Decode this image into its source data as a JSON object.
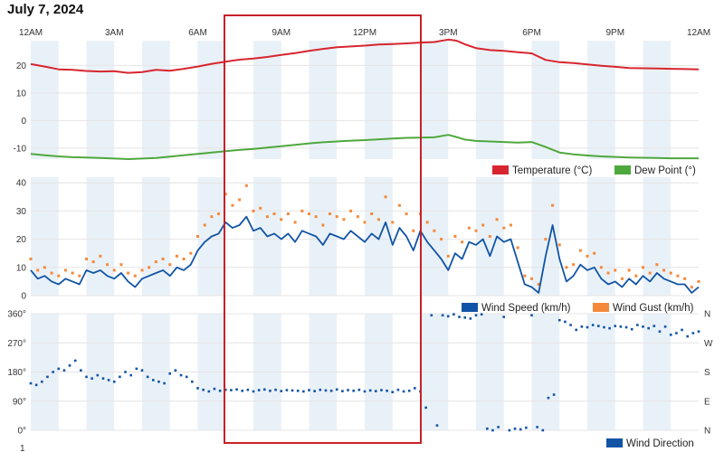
{
  "page": {
    "title": "July 7, 2024"
  },
  "highlight_box_color": "#c8202a",
  "colors": {
    "temperature": "#d7262f",
    "dew_point": "#4fa83e",
    "wind_speed": "#1154a6",
    "wind_gust": "#f5893a",
    "wind_direction": "#1154a6",
    "band": "#e9f1f8",
    "grid": "#e4e4e4"
  },
  "time_axis": {
    "labels": [
      "12AM",
      "3AM",
      "6AM",
      "9AM",
      "12PM",
      "3PM",
      "6PM",
      "9PM",
      "12AM"
    ],
    "range_hours": [
      0,
      24
    ]
  },
  "chart_data": [
    {
      "type": "line",
      "ylim": [
        -14,
        29
      ],
      "yticks": [
        -10,
        0,
        10,
        20
      ],
      "ytick_labels": [
        "-10",
        "0",
        "10",
        "20"
      ],
      "series": [
        {
          "name": "Temperature (°C)",
          "x": [
            0,
            0.5,
            1,
            1.5,
            2,
            2.5,
            3,
            3.5,
            4,
            4.5,
            5,
            5.5,
            6,
            6.5,
            7,
            7.5,
            8,
            8.5,
            9,
            9.5,
            10,
            10.5,
            11,
            11.5,
            12,
            12.5,
            13,
            13.5,
            14,
            14.5,
            15,
            15.3,
            15.6,
            16,
            16.5,
            17,
            17.5,
            18,
            18.5,
            19,
            19.5,
            20,
            20.5,
            21,
            21.5,
            22,
            22.5,
            23,
            23.5,
            24
          ],
          "values": [
            20.5,
            19.6,
            18.6,
            18.4,
            18.0,
            17.8,
            17.9,
            17.3,
            17.6,
            18.4,
            18.1,
            18.8,
            19.6,
            20.6,
            21.4,
            22.1,
            22.5,
            23.1,
            23.8,
            24.5,
            25.3,
            26.0,
            26.6,
            26.9,
            27.2,
            27.6,
            27.8,
            28.0,
            28.3,
            28.5,
            29.4,
            29.0,
            27.7,
            26.3,
            25.6,
            25.3,
            24.8,
            24.4,
            22.0,
            21.2,
            20.9,
            20.4,
            19.9,
            19.5,
            19.1,
            19.0,
            18.9,
            18.8,
            18.7,
            18.6
          ]
        },
        {
          "name": "Dew Point (°)",
          "x": [
            0,
            0.5,
            1,
            1.5,
            2,
            2.5,
            3,
            3.5,
            4,
            4.5,
            5,
            5.5,
            6,
            6.5,
            7,
            7.5,
            8,
            8.5,
            9,
            9.5,
            10,
            10.5,
            11,
            11.5,
            12,
            12.5,
            13,
            13.5,
            14,
            14.5,
            15,
            15.3,
            15.6,
            16,
            16.5,
            17,
            17.5,
            18,
            18.5,
            19,
            19.5,
            20,
            20.5,
            21,
            21.5,
            22,
            22.5,
            23,
            23.5,
            24
          ],
          "values": [
            -12.1,
            -12.6,
            -13.0,
            -13.3,
            -13.4,
            -13.6,
            -13.8,
            -14.0,
            -13.8,
            -13.6,
            -13.1,
            -12.6,
            -12.1,
            -11.6,
            -11.1,
            -10.7,
            -10.3,
            -9.8,
            -9.3,
            -8.8,
            -8.3,
            -7.9,
            -7.6,
            -7.3,
            -7.1,
            -6.8,
            -6.5,
            -6.3,
            -6.2,
            -6.1,
            -5.2,
            -6.0,
            -6.9,
            -7.4,
            -7.6,
            -7.8,
            -8.0,
            -7.8,
            -9.6,
            -11.6,
            -12.3,
            -12.7,
            -13.0,
            -13.2,
            -13.4,
            -13.5,
            -13.6,
            -13.7,
            -13.7,
            -13.7
          ]
        }
      ]
    },
    {
      "type": "line",
      "ylim": [
        0,
        42
      ],
      "yticks": [
        0,
        10,
        20,
        30,
        40
      ],
      "ytick_labels": [
        "0",
        "10",
        "20",
        "30",
        "40"
      ],
      "series": [
        {
          "name": "Wind Speed (km/h)",
          "x": [
            0,
            0.25,
            0.5,
            0.75,
            1,
            1.25,
            1.5,
            1.75,
            2,
            2.25,
            2.5,
            2.75,
            3,
            3.25,
            3.5,
            3.75,
            4,
            4.25,
            4.5,
            4.75,
            5,
            5.25,
            5.5,
            5.75,
            6,
            6.25,
            6.5,
            6.75,
            7,
            7.25,
            7.5,
            7.75,
            8,
            8.25,
            8.5,
            8.75,
            9,
            9.25,
            9.5,
            9.75,
            10,
            10.25,
            10.5,
            10.75,
            11,
            11.25,
            11.5,
            11.75,
            12,
            12.25,
            12.5,
            12.75,
            13,
            13.25,
            13.5,
            13.75,
            14,
            14.25,
            14.5,
            14.75,
            15,
            15.25,
            15.5,
            15.75,
            16,
            16.25,
            16.5,
            16.75,
            17,
            17.25,
            17.5,
            17.75,
            18,
            18.25,
            18.5,
            18.75,
            19,
            19.25,
            19.5,
            19.75,
            20,
            20.25,
            20.5,
            20.75,
            21,
            21.25,
            21.5,
            21.75,
            22,
            22.25,
            22.5,
            22.75,
            23,
            23.25,
            23.5,
            23.75,
            24
          ],
          "values": [
            9,
            6,
            7,
            5,
            4,
            6,
            5,
            4,
            9,
            8,
            9,
            7,
            6,
            8,
            5,
            3,
            6,
            7,
            8,
            9,
            7,
            10,
            9,
            11,
            16,
            19,
            21,
            22,
            26,
            24,
            25,
            28,
            23,
            24,
            21,
            22,
            20,
            22,
            19,
            23,
            22,
            21,
            18,
            22,
            21,
            20,
            23,
            21,
            19,
            22,
            20,
            26,
            18,
            24,
            21,
            16,
            23,
            19,
            16,
            13,
            9,
            15,
            13,
            19,
            18,
            20,
            14,
            21,
            19,
            20,
            12,
            4,
            3,
            1,
            14,
            25,
            13,
            5,
            7,
            11,
            9,
            10,
            6,
            4,
            5,
            3,
            6,
            4,
            7,
            5,
            8,
            6,
            5,
            4,
            4,
            1,
            3
          ]
        },
        {
          "name": "Wind Gust (km/h)",
          "x": [
            0,
            0.25,
            0.5,
            0.75,
            1,
            1.25,
            1.5,
            1.75,
            2,
            2.25,
            2.5,
            2.75,
            3,
            3.25,
            3.5,
            3.75,
            4,
            4.25,
            4.5,
            4.75,
            5,
            5.25,
            5.5,
            5.75,
            6,
            6.25,
            6.5,
            6.75,
            7,
            7.25,
            7.5,
            7.75,
            8,
            8.25,
            8.5,
            8.75,
            9,
            9.25,
            9.5,
            9.75,
            10,
            10.25,
            10.5,
            10.75,
            11,
            11.25,
            11.5,
            11.75,
            12,
            12.25,
            12.5,
            12.75,
            13,
            13.25,
            13.5,
            13.75,
            14,
            14.25,
            14.5,
            14.75,
            15,
            15.25,
            15.5,
            15.75,
            16,
            16.25,
            16.5,
            16.75,
            17,
            17.25,
            17.5,
            17.75,
            18,
            18.25,
            18.5,
            18.75,
            19,
            19.25,
            19.5,
            19.75,
            20,
            20.25,
            20.5,
            20.75,
            21,
            21.25,
            21.5,
            21.75,
            22,
            22.25,
            22.5,
            22.75,
            23,
            23.25,
            23.5,
            23.75,
            24
          ],
          "values": [
            13,
            9,
            10,
            8,
            7,
            9,
            8,
            7,
            13,
            12,
            14,
            11,
            9,
            11,
            8,
            7,
            9,
            10,
            12,
            13,
            11,
            14,
            13,
            15,
            21,
            25,
            28,
            29,
            36,
            32,
            34,
            39,
            30,
            31,
            28,
            29,
            27,
            29,
            26,
            30,
            29,
            28,
            25,
            29,
            28,
            27,
            30,
            28,
            26,
            29,
            27,
            35,
            26,
            32,
            29,
            23,
            29,
            26,
            23,
            20,
            14,
            21,
            19,
            24,
            23,
            25,
            21,
            27,
            24,
            25,
            17,
            7,
            6,
            4,
            20,
            32,
            18,
            10,
            11,
            16,
            14,
            15,
            10,
            8,
            9,
            6,
            9,
            7,
            10,
            8,
            11,
            9,
            8,
            7,
            6,
            3,
            5
          ]
        }
      ]
    },
    {
      "type": "scatter",
      "ylim": [
        0,
        360
      ],
      "yticks": [
        0,
        90,
        180,
        270,
        360
      ],
      "ytick_labels": [
        "0°",
        "90°",
        "180°",
        "270°",
        "360°"
      ],
      "right_labels": [
        "N",
        "E",
        "S",
        "W",
        "N"
      ],
      "series": [
        {
          "name": "Wind Direction",
          "x": [
            0,
            0.2,
            0.4,
            0.6,
            0.8,
            1,
            1.2,
            1.4,
            1.6,
            1.8,
            2,
            2.2,
            2.4,
            2.6,
            2.8,
            3,
            3.2,
            3.4,
            3.6,
            3.8,
            4,
            4.2,
            4.4,
            4.6,
            4.8,
            5,
            5.2,
            5.4,
            5.6,
            5.8,
            6,
            6.2,
            6.4,
            6.6,
            6.8,
            7,
            7.2,
            7.4,
            7.6,
            7.8,
            8,
            8.2,
            8.4,
            8.6,
            8.8,
            9,
            9.2,
            9.4,
            9.6,
            9.8,
            10,
            10.2,
            10.4,
            10.6,
            10.8,
            11,
            11.2,
            11.4,
            11.6,
            11.8,
            12,
            12.2,
            12.4,
            12.6,
            12.8,
            13,
            13.2,
            13.4,
            13.6,
            13.8,
            14,
            14.2,
            14.4,
            14.6,
            14.8,
            15,
            15.2,
            15.4,
            15.6,
            15.8,
            16,
            16.2,
            16.4,
            16.6,
            16.8,
            17,
            17.2,
            17.4,
            17.6,
            17.8,
            18,
            18.2,
            18.4,
            18.6,
            18.8,
            19,
            19.2,
            19.4,
            19.6,
            19.8,
            20,
            20.2,
            20.4,
            20.6,
            20.8,
            21,
            21.2,
            21.4,
            21.6,
            21.8,
            22,
            22.2,
            22.4,
            22.6,
            22.8,
            23,
            23.2,
            23.4,
            23.6,
            23.8,
            24
          ],
          "values": [
            145,
            140,
            150,
            165,
            180,
            190,
            185,
            200,
            215,
            185,
            165,
            160,
            170,
            160,
            155,
            150,
            165,
            180,
            170,
            190,
            185,
            165,
            155,
            150,
            145,
            175,
            185,
            170,
            165,
            150,
            130,
            125,
            120,
            128,
            122,
            125,
            124,
            126,
            122,
            125,
            120,
            124,
            126,
            122,
            125,
            121,
            124,
            123,
            122,
            120,
            124,
            121,
            125,
            123,
            122,
            126,
            121,
            124,
            122,
            125,
            120,
            123,
            121,
            124,
            122,
            118,
            125,
            120,
            122,
            130,
            120,
            70,
            355,
            15,
            355,
            352,
            358,
            350,
            348,
            345,
            355,
            358,
            5,
            0,
            10,
            350,
            0,
            5,
            3,
            8,
            355,
            10,
            0,
            100,
            110,
            340,
            335,
            325,
            310,
            320,
            318,
            325,
            322,
            318,
            315,
            322,
            320,
            318,
            312,
            325,
            320,
            315,
            322,
            305,
            320,
            295,
            300,
            310,
            290,
            300,
            305
          ]
        }
      ]
    }
  ],
  "legends": {
    "temperature": "Temperature (°C)",
    "dew_point": "Dew Point (°)",
    "wind_speed": "Wind Speed (km/h)",
    "wind_gust": "Wind Gust (km/h)",
    "wind_direction": "Wind Direction"
  },
  "bottom_partial_label": "1"
}
